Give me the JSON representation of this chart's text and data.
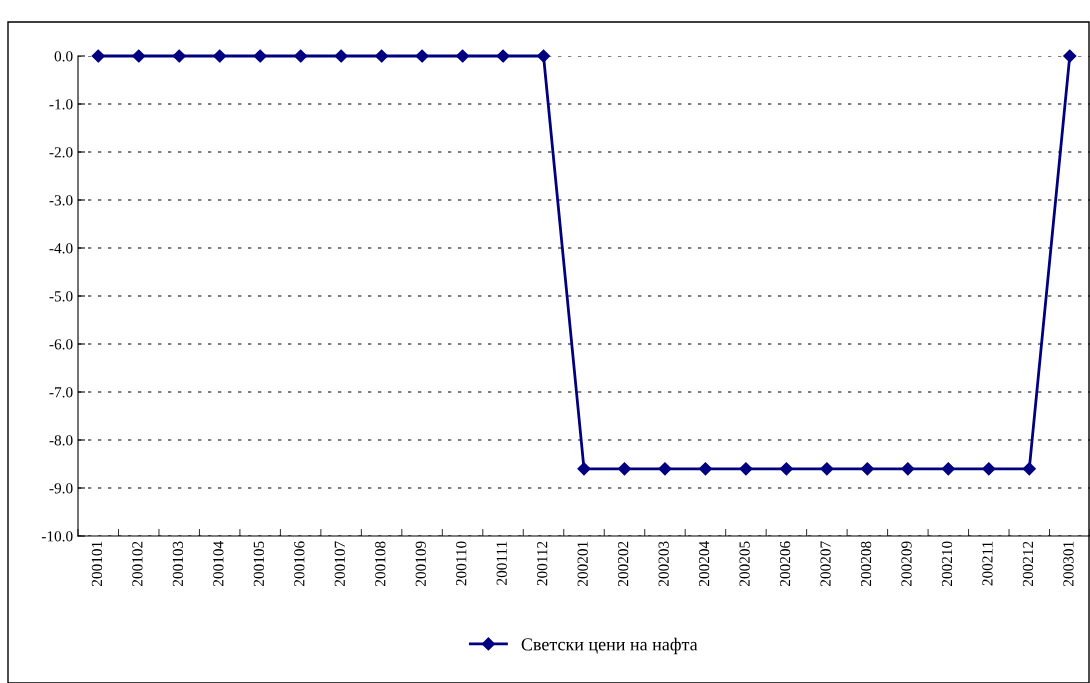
{
  "chart_data": {
    "type": "line",
    "categories": [
      "200101",
      "200102",
      "200103",
      "200104",
      "200105",
      "200106",
      "200107",
      "200108",
      "200109",
      "200110",
      "200111",
      "200112",
      "200201",
      "200202",
      "200203",
      "200204",
      "200205",
      "200206",
      "200207",
      "200208",
      "200209",
      "200210",
      "200211",
      "200212",
      "200301"
    ],
    "series": [
      {
        "name": "Светски цени на нафта",
        "color": "#000080",
        "values": [
          0,
          0,
          0,
          0,
          0,
          0,
          0,
          0,
          0,
          0,
          0,
          0,
          -8.6,
          -8.6,
          -8.6,
          -8.6,
          -8.6,
          -8.6,
          -8.6,
          -8.6,
          -8.6,
          -8.6,
          -8.6,
          -8.6,
          0
        ]
      }
    ],
    "ylim": [
      -10,
      0
    ],
    "yticks": [
      {
        "value": 0,
        "label": "0.0"
      },
      {
        "value": -1,
        "label": "-1.0"
      },
      {
        "value": -2,
        "label": "-2.0"
      },
      {
        "value": -3,
        "label": "-3.0"
      },
      {
        "value": -4,
        "label": "-4.0"
      },
      {
        "value": -5,
        "label": "-5.0"
      },
      {
        "value": -6,
        "label": "-6.0"
      },
      {
        "value": -7,
        "label": "-7.0"
      },
      {
        "value": -8,
        "label": "-8.0"
      },
      {
        "value": -9,
        "label": "-9.0"
      },
      {
        "value": -10,
        "label": "-10.0"
      }
    ],
    "grid": "y",
    "legend": "bottom",
    "marker": "diamond",
    "line_style": "solid"
  }
}
